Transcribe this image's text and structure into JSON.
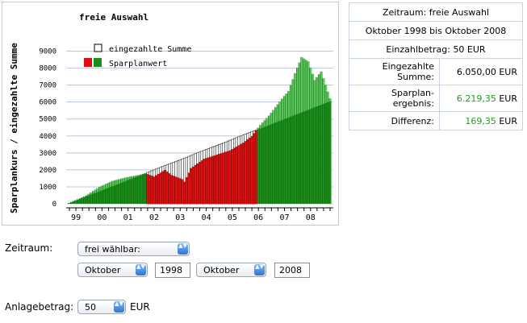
{
  "chart_data": {
    "type": "bar",
    "title": "freie Auswahl",
    "ylabel": "Sparplankurs / eingezahlte Summe",
    "ylim": [
      0,
      9500
    ],
    "yticks": [
      0,
      1000,
      2000,
      3000,
      4000,
      5000,
      6000,
      7000,
      8000,
      9000
    ],
    "xticks": [
      "99",
      "00",
      "01",
      "02",
      "03",
      "04",
      "05",
      "06",
      "07",
      "08"
    ],
    "legend": [
      "eingezahlte Summe",
      "Sparplanwert"
    ],
    "grid": "horizontal",
    "colors": {
      "profit": "#1a8f1a",
      "loss": "#dd1111",
      "profit_light": "#5cc95c",
      "deposit_outline": "#000000"
    },
    "x_months": [
      "1998-10",
      "1998-12",
      "1999-06",
      "1999-12",
      "2000-06",
      "2000-12",
      "2001-06",
      "2001-09",
      "2002-01",
      "2002-06",
      "2002-09",
      "2003-02",
      "2003-03",
      "2003-06",
      "2003-12",
      "2004-06",
      "2004-12",
      "2005-06",
      "2005-10",
      "2006-02",
      "2006-06",
      "2006-12",
      "2007-03",
      "2007-06",
      "2007-09",
      "2007-12",
      "2008-03",
      "2008-06",
      "2008-10"
    ],
    "series": [
      {
        "name": "eingezahlte Summe",
        "values": [
          50,
          150,
          450,
          750,
          1050,
          1350,
          1650,
          1800,
          2000,
          2250,
          2400,
          2650,
          2700,
          2850,
          3150,
          3450,
          3750,
          4050,
          4250,
          4450,
          4650,
          4950,
          5100,
          5250,
          5400,
          5550,
          5700,
          5850,
          6050
        ]
      },
      {
        "name": "Sparplanwert",
        "values": [
          50,
          160,
          500,
          1000,
          1350,
          1550,
          1700,
          1800,
          1600,
          2000,
          1700,
          1450,
          1300,
          2100,
          2650,
          2900,
          3150,
          3600,
          4000,
          4650,
          5200,
          6200,
          6650,
          7700,
          8650,
          8400,
          7300,
          7800,
          6219
        ]
      }
    ]
  },
  "info": {
    "zeitraum": "Zeitraum: freie Auswahl",
    "range": "Oktober 1998 bis Oktober 2008",
    "einzahl": "Einzahlbetrag: 50 EUR",
    "eingezahlt_label": "Eingezahlte Summe:",
    "eingezahlt_value": "6.050,00 EUR",
    "ergebnis_label": "Sparplan-ergebnis:",
    "ergebnis_number": "6.219,35",
    "ergebnis_unit": " EUR",
    "differenz_label": "Differenz:",
    "differenz_number": "169,35",
    "differenz_unit": " EUR"
  },
  "form": {
    "zeitraum_label": "Zeitraum:",
    "zeitraum_select": "frei wählbar:",
    "from_month": "Oktober",
    "from_year": "1998",
    "to_month": "Oktober",
    "to_year": "2008",
    "anlage_label": "Anlagebetrag:",
    "anlage_value": "50",
    "anlage_unit": "EUR",
    "arrow_glyph": "▲▼"
  }
}
